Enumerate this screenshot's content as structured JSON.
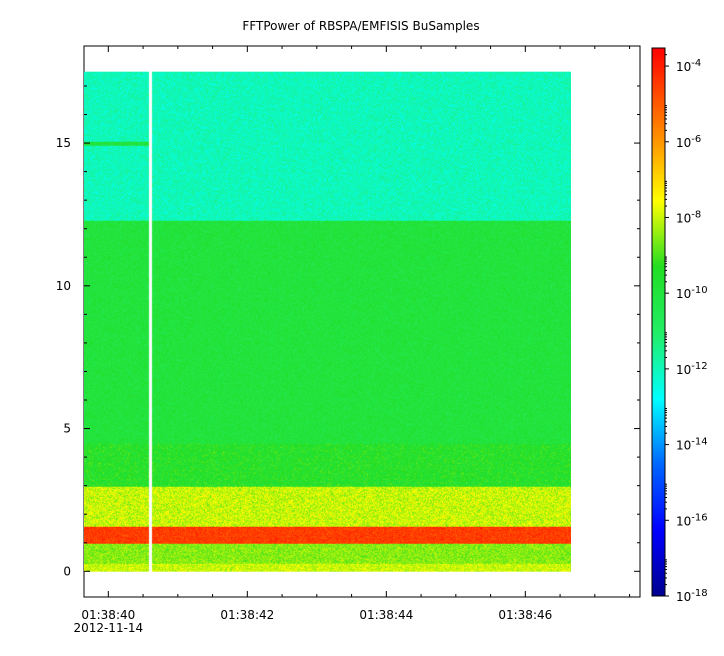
{
  "chart_data": {
    "type": "heatmap",
    "title": "FFTPower of RBSPA/EMFISIS  BuSamples",
    "xlabel": "",
    "ylabel": "",
    "x_ticks": [
      {
        "value": 0,
        "label": "01:38:40",
        "label2": "2012-11-14"
      },
      {
        "value": 2,
        "label": "01:38:42",
        "label2": ""
      },
      {
        "value": 4,
        "label": "01:38:44",
        "label2": ""
      },
      {
        "value": 6,
        "label": "01:38:46",
        "label2": ""
      }
    ],
    "x_minor_ticks": [
      -0.5,
      0.5,
      1,
      1.5,
      2.5,
      3,
      3.5,
      4.5,
      5,
      5.5,
      6.5,
      7,
      7.5
    ],
    "xlim": [
      -0.35,
      7.65
    ],
    "data_xrange": [
      -0.35,
      6.65
    ],
    "gap_x": 0.6,
    "y_ticks": [
      0,
      5,
      10,
      15
    ],
    "y_tick_labels": [
      "0",
      "5",
      "10",
      "15"
    ],
    "ylim": [
      -0.9,
      18.4
    ],
    "data_yrange": [
      0,
      17.5
    ],
    "colorbar": {
      "scale": "log",
      "range": [
        1e-18,
        0.0003
      ],
      "ticks": [
        {
          "value": 0.0001,
          "base": "10",
          "exp": "-4"
        },
        {
          "value": 1e-06,
          "base": "10",
          "exp": "-6"
        },
        {
          "value": 1e-08,
          "base": "10",
          "exp": "-8"
        },
        {
          "value": 1e-10,
          "base": "10",
          "exp": "-10"
        },
        {
          "value": 1e-12,
          "base": "10",
          "exp": "-12"
        },
        {
          "value": 1e-14,
          "base": "10",
          "exp": "-14"
        },
        {
          "value": 1e-16,
          "base": "10",
          "exp": "-16"
        },
        {
          "value": 1e-18,
          "base": "10",
          "exp": "-18"
        }
      ]
    },
    "bands": [
      {
        "y": [
          0,
          0.3
        ],
        "level": 1e-08
      },
      {
        "y": [
          0.3,
          1.0
        ],
        "level": 3e-09
      },
      {
        "y": [
          1.0,
          1.6
        ],
        "level": 3e-05
      },
      {
        "y": [
          1.6,
          3.0
        ],
        "level": 1e-08
      },
      {
        "y": [
          3.0,
          4.5
        ],
        "level": 3e-10
      },
      {
        "y": [
          4.5,
          12.3
        ],
        "level": 1e-10
      },
      {
        "y": [
          12.3,
          17.5
        ],
        "level": 1e-12
      }
    ],
    "features": [
      {
        "y": 15.0,
        "x": [
          -0.35,
          0.6
        ],
        "level": 1e-10
      }
    ],
    "grid": false,
    "legend": "none"
  }
}
